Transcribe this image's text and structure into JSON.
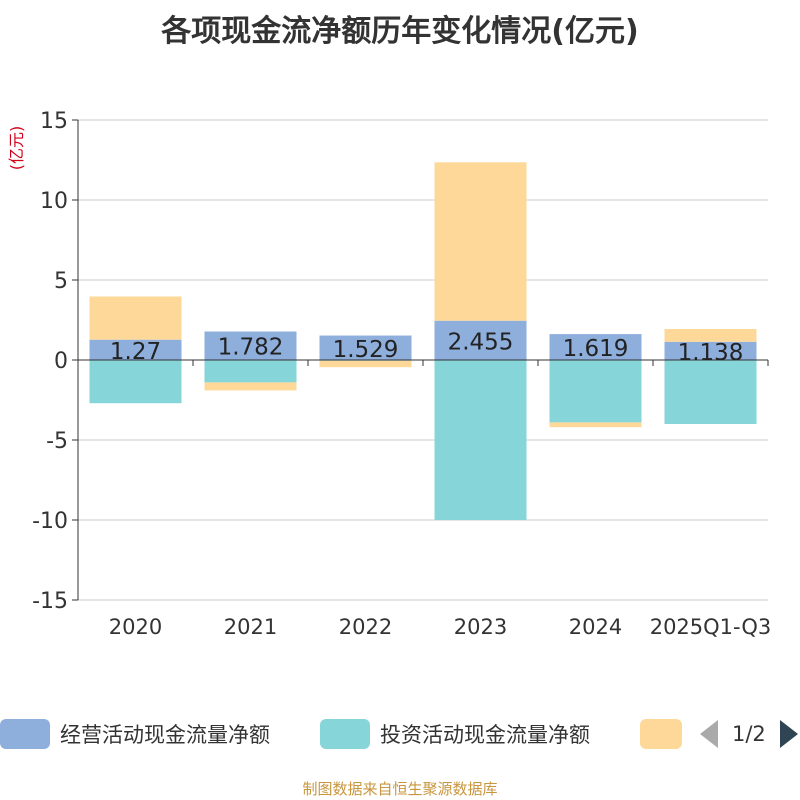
{
  "chart_data": {
    "type": "bar",
    "stacked": true,
    "title": "各项现金流净额历年变化情况(亿元)",
    "ylabel": "(亿元)",
    "ylim": [
      -15,
      15
    ],
    "yticks": [
      15,
      10,
      5,
      0,
      -5,
      -10,
      -15
    ],
    "categories": [
      "2020",
      "2021",
      "2022",
      "2023",
      "2024",
      "2025Q1-Q3"
    ],
    "series": [
      {
        "name": "经营活动现金流量净额",
        "color": "#8eaedc",
        "values": [
          1.27,
          1.782,
          1.529,
          2.455,
          1.619,
          1.138
        ]
      },
      {
        "name": "投资活动现金流量净额",
        "color": "#86d5d8",
        "values": [
          -2.7,
          -1.4,
          -0.05,
          -10.0,
          -3.9,
          -4.0
        ]
      },
      {
        "name": "",
        "color": "#fdd899",
        "values": [
          2.7,
          -0.5,
          -0.4,
          9.9,
          -0.3,
          0.8
        ]
      }
    ],
    "data_labels": [
      "1.27",
      "1.782",
      "1.529",
      "2.455",
      "1.619",
      "1.138"
    ]
  },
  "legend": {
    "items": [
      {
        "label": "经营活动现金流量净额",
        "color": "#8eaedc"
      },
      {
        "label": "投资活动现金流量净额",
        "color": "#86d5d8"
      },
      {
        "label": "",
        "color": "#fdd899"
      }
    ],
    "page": "1/2"
  },
  "footer": "制图数据来自恒生聚源数据库"
}
